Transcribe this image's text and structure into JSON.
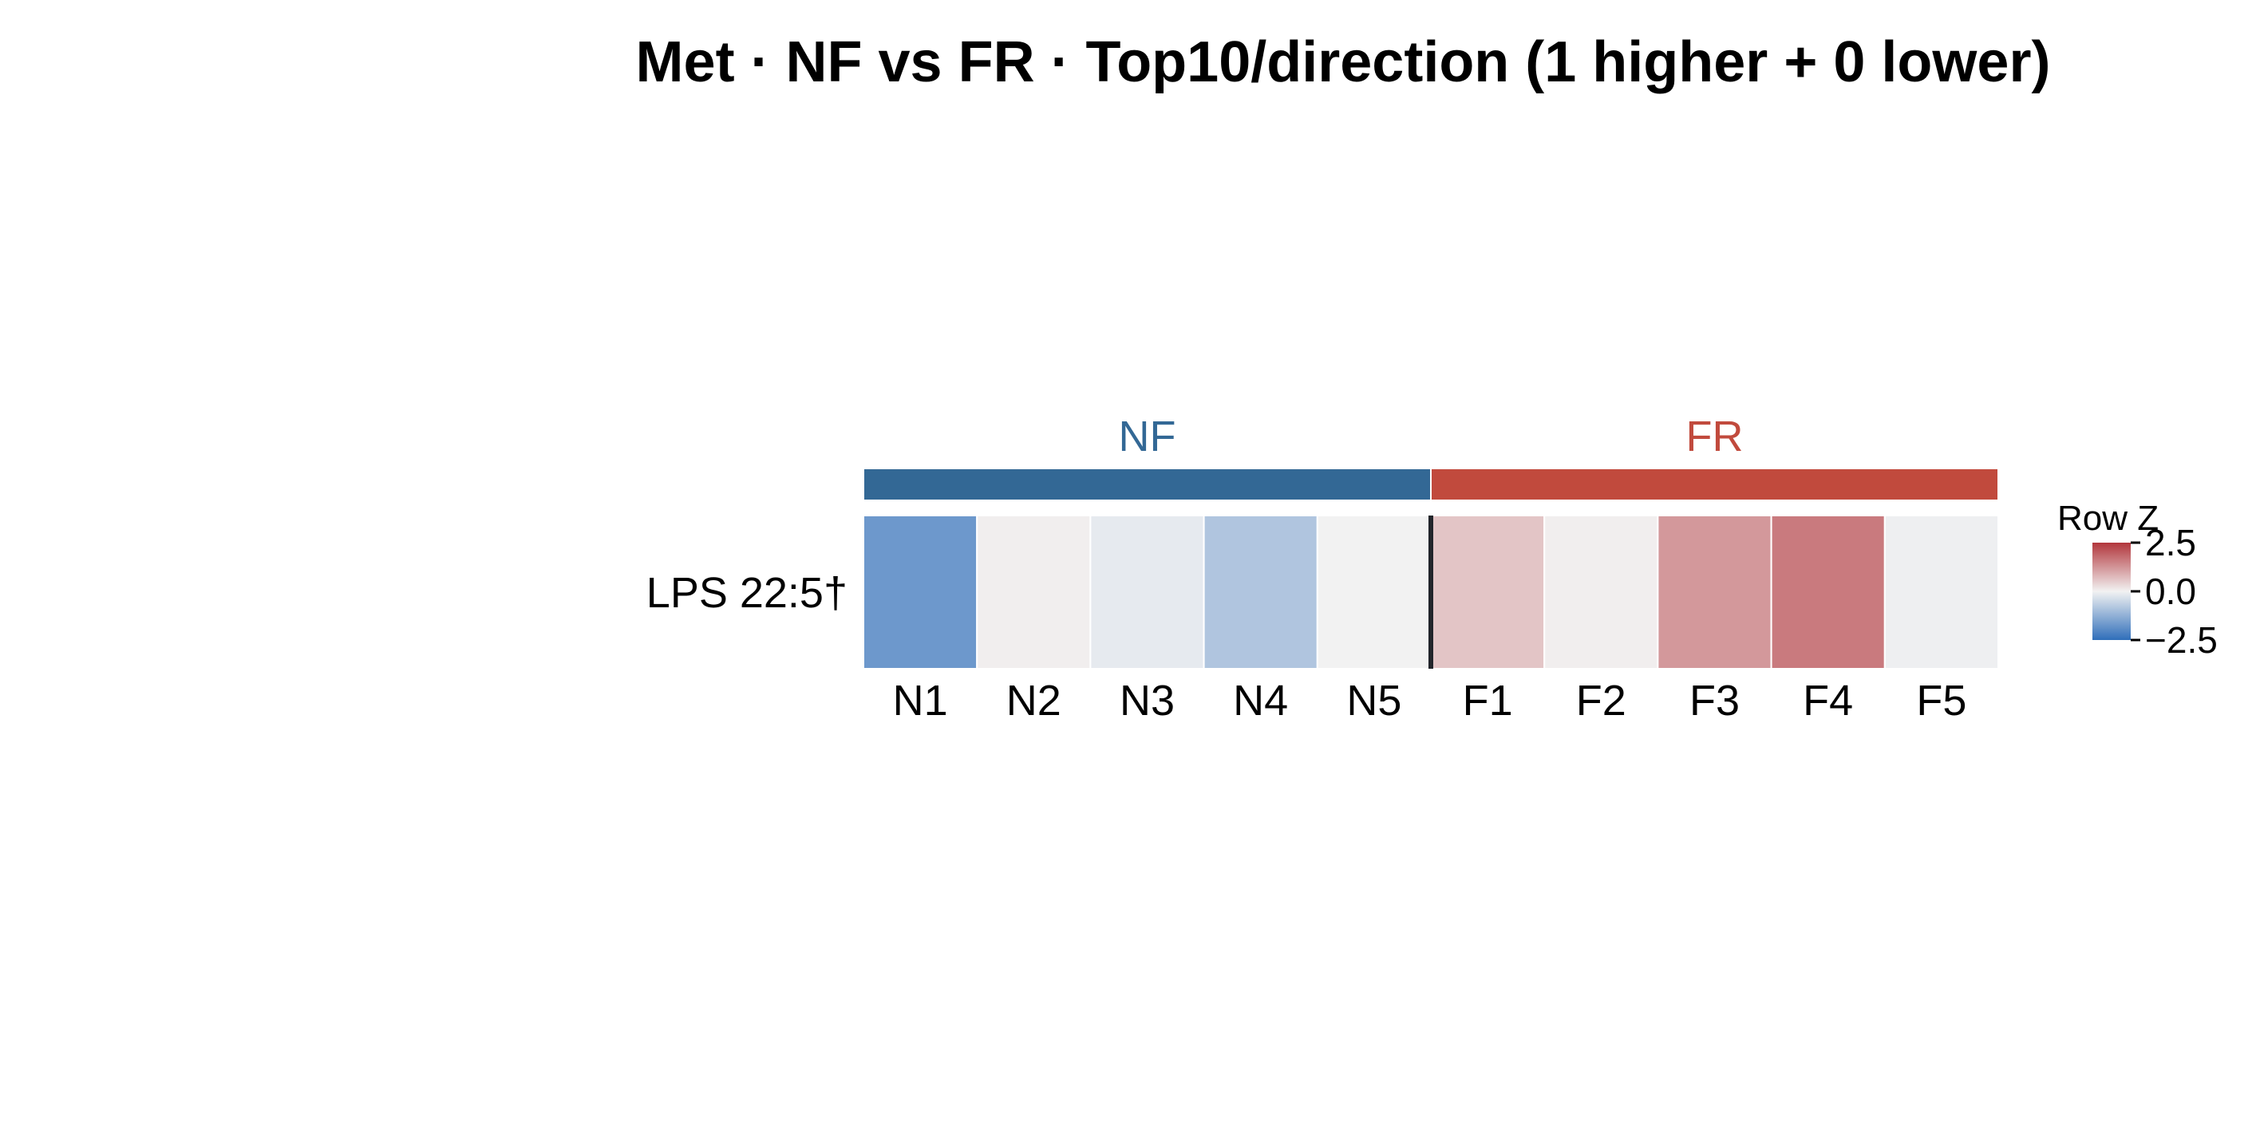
{
  "chart_data": {
    "type": "heatmap",
    "title": "Met · NF vs FR · Top10/direction (1 higher + 0 lower)",
    "rows": [
      "LPS 22:5†"
    ],
    "columns": [
      "N1",
      "N2",
      "N3",
      "N4",
      "N5",
      "F1",
      "F2",
      "F3",
      "F4",
      "F5"
    ],
    "values": [
      [
        -1.7,
        0.05,
        -0.15,
        -0.85,
        0.0,
        0.6,
        0.05,
        1.2,
        1.6,
        -0.05
      ]
    ],
    "groups": [
      {
        "name": "NF",
        "color": "#336895",
        "columns": [
          "N1",
          "N2",
          "N3",
          "N4",
          "N5"
        ]
      },
      {
        "name": "FR",
        "color": "#C14A3D",
        "columns": [
          "F1",
          "F2",
          "F3",
          "F4",
          "F5"
        ]
      }
    ],
    "legend": {
      "title": "Row Z",
      "ticks": [
        2.5,
        0.0,
        -2.5
      ],
      "tick_labels": [
        "2.5",
        "0.0",
        "−2.5"
      ],
      "range": [
        -2.5,
        2.5
      ],
      "position": "right",
      "colors": {
        "low": "#2F6EBA",
        "mid": "#F2F2F2",
        "high": "#B2363C"
      }
    }
  }
}
